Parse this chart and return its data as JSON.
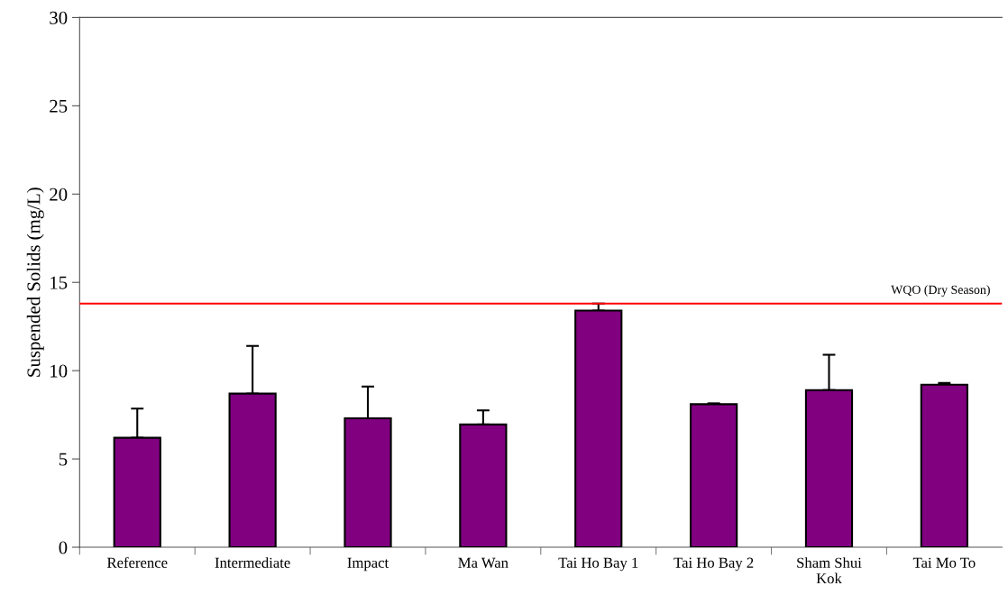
{
  "chart_data": {
    "type": "bar",
    "ylabel": "Suspended Solids (mg/L)",
    "categories": [
      "Reference",
      "Intermediate",
      "Impact",
      "Ma Wan",
      "Tai Ho Bay 1",
      "Tai Ho Bay 2",
      "Sham Shui\nKok",
      "Tai Mo To"
    ],
    "values": [
      6.2,
      8.7,
      7.3,
      6.95,
      13.4,
      8.1,
      8.9,
      9.2
    ],
    "errors": [
      [
        6.2,
        7.85
      ],
      [
        8.7,
        11.4
      ],
      [
        7.3,
        9.1
      ],
      [
        6.95,
        7.75
      ],
      [
        13.4,
        13.8
      ],
      [
        8.1,
        8.15
      ],
      [
        8.9,
        10.9
      ],
      [
        9.2,
        9.3
      ]
    ],
    "color": "#800080",
    "ylim": [
      0,
      30
    ],
    "yticks": [
      0,
      5,
      10,
      15,
      20,
      25,
      30
    ],
    "ref_lines": [
      {
        "axis": "y",
        "value": 13.8,
        "label": "WQO (Dry Season)",
        "color": "#ff0000"
      }
    ],
    "grid": false,
    "legend": false
  }
}
